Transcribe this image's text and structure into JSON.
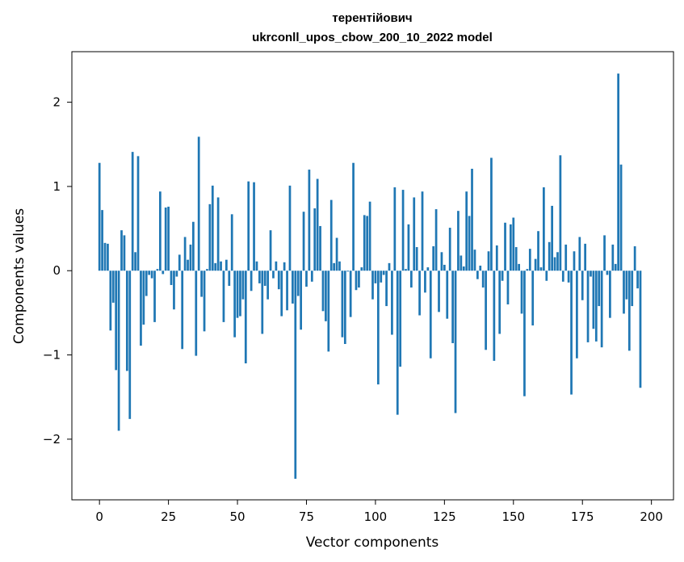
{
  "chart_data": {
    "type": "bar",
    "title": "терентійович",
    "subtitle": "ukrconll_upos_cbow_200_10_2022 model",
    "xlabel": "Vector components",
    "ylabel": "Components values",
    "xlim": [
      -10,
      208
    ],
    "ylim": [
      -2.72,
      2.6
    ],
    "xticks": [
      0,
      25,
      50,
      75,
      100,
      125,
      150,
      175,
      200
    ],
    "xtick_labels": [
      "0",
      "25",
      "50",
      "75",
      "100",
      "125",
      "150",
      "175",
      "200"
    ],
    "yticks": [
      -2,
      -1,
      0,
      1,
      2
    ],
    "ytick_labels": [
      "−2",
      "−1",
      "0",
      "1",
      "2"
    ],
    "grid": false,
    "bar_color": "#1f77b4",
    "values": [
      1.28,
      0.72,
      0.33,
      0.32,
      -0.71,
      -0.38,
      -1.18,
      -1.9,
      0.48,
      0.42,
      -1.19,
      -1.76,
      1.41,
      0.22,
      1.36,
      -0.89,
      -0.64,
      -0.3,
      -0.05,
      -0.09,
      -0.61,
      0.02,
      0.94,
      -0.04,
      0.75,
      0.76,
      -0.17,
      -0.46,
      -0.07,
      0.19,
      -0.93,
      0.4,
      0.13,
      0.31,
      0.58,
      -1.01,
      1.59,
      -0.31,
      -0.72,
      0.02,
      0.79,
      1.01,
      0.09,
      0.87,
      0.11,
      -0.61,
      0.13,
      -0.18,
      0.67,
      -0.79,
      -0.56,
      -0.54,
      -0.34,
      -1.1,
      1.06,
      -0.24,
      1.05,
      0.11,
      -0.15,
      -0.75,
      -0.18,
      -0.34,
      0.48,
      -0.09,
      0.11,
      -0.22,
      -0.54,
      0.1,
      -0.47,
      1.01,
      -0.39,
      -2.47,
      -0.3,
      -0.7,
      0.7,
      -0.19,
      1.2,
      -0.13,
      0.74,
      1.09,
      0.53,
      -0.48,
      -0.6,
      -0.96,
      0.84,
      0.09,
      0.39,
      0.11,
      -0.79,
      -0.87,
      -0.01,
      -0.55,
      1.28,
      -0.23,
      -0.2,
      0.04,
      0.66,
      0.65,
      0.82,
      -0.34,
      -0.15,
      -1.35,
      -0.14,
      -0.05,
      -0.42,
      0.09,
      -0.76,
      0.99,
      -1.71,
      -1.14,
      0.96,
      0.02,
      0.55,
      -0.2,
      0.87,
      0.28,
      -0.53,
      0.94,
      -0.26,
      0.04,
      -1.04,
      0.29,
      0.73,
      -0.49,
      0.22,
      0.07,
      -0.57,
      0.51,
      -0.86,
      -1.69,
      0.71,
      0.18,
      0.05,
      0.94,
      0.65,
      1.21,
      0.25,
      -0.1,
      0.06,
      -0.2,
      -0.94,
      0.23,
      1.34,
      -1.07,
      0.3,
      -0.75,
      -0.12,
      0.57,
      -0.4,
      0.55,
      0.63,
      0.28,
      0.08,
      -0.51,
      -1.49,
      0.02,
      0.26,
      -0.65,
      0.14,
      0.47,
      0.04,
      0.99,
      -0.12,
      0.34,
      0.77,
      0.16,
      0.22,
      1.37,
      -0.13,
      0.31,
      -0.14,
      -1.47,
      0.23,
      -1.04,
      0.4,
      -0.35,
      0.32,
      -0.85,
      -0.07,
      -0.69,
      -0.84,
      -0.42,
      -0.91,
      0.42,
      -0.05,
      -0.56,
      0.31,
      0.08,
      2.34,
      1.26,
      -0.51,
      -0.34,
      -0.95,
      -0.42,
      0.29,
      -0.21,
      -1.39
    ]
  }
}
